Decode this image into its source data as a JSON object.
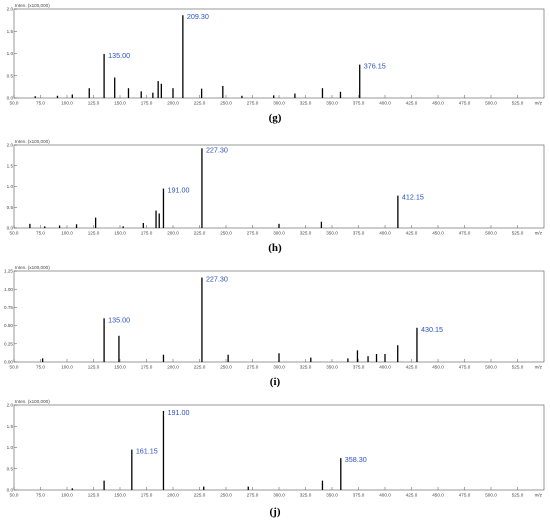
{
  "chart_data": [
    {
      "type": "bar",
      "panel": "(g)",
      "ylabel": "Inten. (x100,000)",
      "xlabel": "m/z",
      "xlim": [
        50,
        550
      ],
      "ylim": [
        0,
        2.0
      ],
      "xticks": [
        "50.0",
        "75.0",
        "100.0",
        "125.0",
        "150.0",
        "175.0",
        "200.0",
        "225.0",
        "250.0",
        "275.0",
        "300.0",
        "325.0",
        "350.0",
        "375.0",
        "400.0",
        "425.0",
        "450.0",
        "475.0",
        "500.0",
        "525.0"
      ],
      "yticks": [
        "0.0",
        "0.5",
        "1.0",
        "1.5",
        "2.0"
      ],
      "peaks": [
        {
          "x": 70,
          "y": 0.04
        },
        {
          "x": 91,
          "y": 0.05
        },
        {
          "x": 105,
          "y": 0.08
        },
        {
          "x": 121,
          "y": 0.22
        },
        {
          "x": 135,
          "y": 0.99,
          "label": "135.00"
        },
        {
          "x": 145,
          "y": 0.46
        },
        {
          "x": 158,
          "y": 0.22
        },
        {
          "x": 170,
          "y": 0.15
        },
        {
          "x": 181,
          "y": 0.12
        },
        {
          "x": 186,
          "y": 0.38
        },
        {
          "x": 189,
          "y": 0.32
        },
        {
          "x": 200,
          "y": 0.22
        },
        {
          "x": 209.3,
          "y": 1.86,
          "label": "209.30"
        },
        {
          "x": 227,
          "y": 0.21
        },
        {
          "x": 247,
          "y": 0.27
        },
        {
          "x": 265,
          "y": 0.05
        },
        {
          "x": 295,
          "y": 0.06
        },
        {
          "x": 315,
          "y": 0.1
        },
        {
          "x": 341,
          "y": 0.22
        },
        {
          "x": 358,
          "y": 0.14
        },
        {
          "x": 376.15,
          "y": 0.75,
          "label": "376.15"
        }
      ]
    },
    {
      "type": "bar",
      "panel": "(h)",
      "ylabel": "Inten. (x100,000)",
      "xlabel": "m/z",
      "xlim": [
        50,
        550
      ],
      "ylim": [
        0,
        2.0
      ],
      "xticks": [
        "50.0",
        "75.0",
        "100.0",
        "125.0",
        "150.0",
        "175.0",
        "200.0",
        "225.0",
        "250.0",
        "275.0",
        "300.0",
        "325.0",
        "350.0",
        "375.0",
        "400.0",
        "425.0",
        "450.0",
        "475.0",
        "500.0",
        "525.0"
      ],
      "yticks": [
        "0.0",
        "0.5",
        "1.0",
        "1.5",
        "2.0"
      ],
      "peaks": [
        {
          "x": 65,
          "y": 0.1
        },
        {
          "x": 79,
          "y": 0.04
        },
        {
          "x": 93,
          "y": 0.06
        },
        {
          "x": 109,
          "y": 0.09
        },
        {
          "x": 127,
          "y": 0.25
        },
        {
          "x": 153,
          "y": 0.04
        },
        {
          "x": 172,
          "y": 0.12
        },
        {
          "x": 184,
          "y": 0.42
        },
        {
          "x": 187,
          "y": 0.35
        },
        {
          "x": 191,
          "y": 0.95,
          "label": "191.00"
        },
        {
          "x": 227.3,
          "y": 1.92,
          "label": "227.30"
        },
        {
          "x": 300,
          "y": 0.1
        },
        {
          "x": 340,
          "y": 0.15
        },
        {
          "x": 412.15,
          "y": 0.78,
          "label": "412.15"
        }
      ]
    },
    {
      "type": "bar",
      "panel": "(i)",
      "ylabel": "Inten. (x100,000)",
      "xlabel": "m/z",
      "xlim": [
        50,
        550
      ],
      "ylim": [
        0,
        1.25
      ],
      "xticks": [
        "50.0",
        "75.0",
        "100.0",
        "125.0",
        "150.0",
        "175.0",
        "200.0",
        "225.0",
        "250.0",
        "275.0",
        "300.0",
        "325.0",
        "350.0",
        "375.0",
        "400.0",
        "425.0",
        "450.0",
        "475.0",
        "500.0",
        "525.0"
      ],
      "yticks": [
        "0.00",
        "0.25",
        "0.50",
        "0.75",
        "1.00",
        "1.25"
      ],
      "peaks": [
        {
          "x": 77,
          "y": 0.05
        },
        {
          "x": 135,
          "y": 0.6,
          "label": "135.00"
        },
        {
          "x": 149,
          "y": 0.36
        },
        {
          "x": 191,
          "y": 0.1
        },
        {
          "x": 227.3,
          "y": 1.16,
          "label": "227.30"
        },
        {
          "x": 252,
          "y": 0.1
        },
        {
          "x": 300,
          "y": 0.12
        },
        {
          "x": 330,
          "y": 0.06
        },
        {
          "x": 365,
          "y": 0.05
        },
        {
          "x": 374,
          "y": 0.16
        },
        {
          "x": 384,
          "y": 0.08
        },
        {
          "x": 392,
          "y": 0.11
        },
        {
          "x": 400,
          "y": 0.11
        },
        {
          "x": 412,
          "y": 0.23
        },
        {
          "x": 430.15,
          "y": 0.47,
          "label": "430.15"
        }
      ]
    },
    {
      "type": "bar",
      "panel": "(j)",
      "ylabel": "Inten. (x100,000)",
      "xlabel": "m/z",
      "xlim": [
        50,
        550
      ],
      "ylim": [
        0,
        2.0
      ],
      "xticks": [
        "50.0",
        "75.0",
        "100.0",
        "125.0",
        "150.0",
        "175.0",
        "200.0",
        "225.0",
        "250.0",
        "275.0",
        "300.0",
        "325.0",
        "350.0",
        "375.0",
        "400.0",
        "425.0",
        "450.0",
        "475.0",
        "500.0",
        "525.0"
      ],
      "yticks": [
        "0.0",
        "0.5",
        "1.0",
        "1.5",
        "2.0"
      ],
      "peaks": [
        {
          "x": 105,
          "y": 0.04
        },
        {
          "x": 135,
          "y": 0.22
        },
        {
          "x": 161.15,
          "y": 0.95,
          "label": "161.15"
        },
        {
          "x": 191,
          "y": 1.86,
          "label": "191.00"
        },
        {
          "x": 229,
          "y": 0.08
        },
        {
          "x": 271,
          "y": 0.08
        },
        {
          "x": 341,
          "y": 0.22
        },
        {
          "x": 358.3,
          "y": 0.75,
          "label": "358.30"
        }
      ]
    }
  ]
}
